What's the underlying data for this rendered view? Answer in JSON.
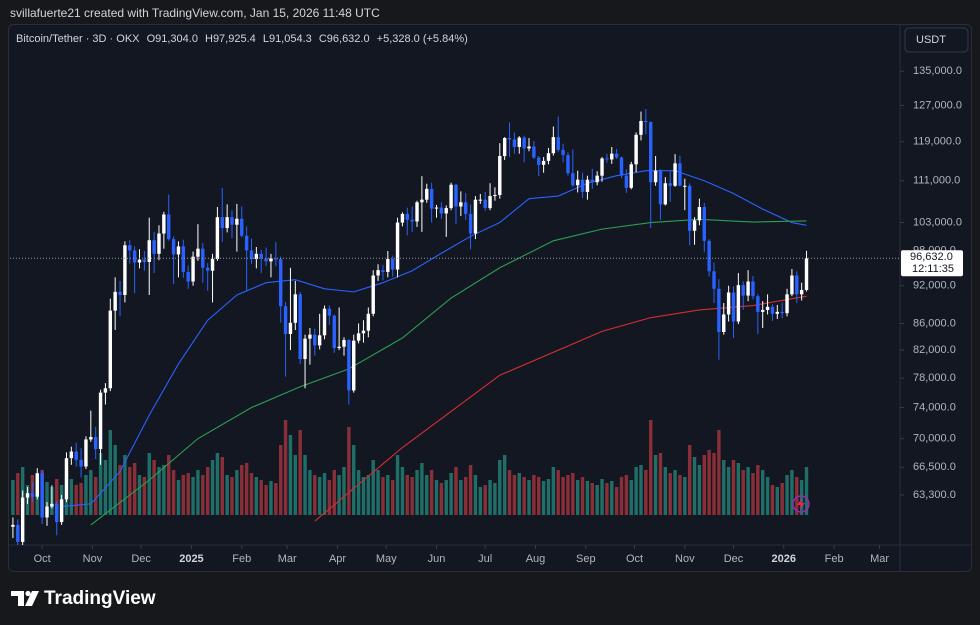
{
  "header": "svillafuerte21 created with TradingView.com, Jan 15, 2026 11:48 UTC",
  "brand": "TradingView",
  "chart_data": {
    "type": "candlestick",
    "symbol": "Bitcoin/Tether · 3D · OKX",
    "legend_values": [
      "O91,304.0",
      "H97,925.4",
      "L91,054.3",
      "C96,632.0",
      "+5,328.0 (+5.84%)"
    ],
    "currency": "USDT",
    "last_price_label": "96,632.0",
    "countdown": "12:11:35",
    "up_color": "#ffffff",
    "down_color": "#2962ff",
    "volume_up_color": "#1f6f68",
    "volume_down_color": "#8a2f37",
    "log_scale": true,
    "grid": false,
    "xlim": [
      -0.6,
      182.2
    ],
    "ylim": [
      58400,
      146100
    ],
    "xticks": [
      {
        "value": 6,
        "label": "Oct"
      },
      {
        "value": 16.33,
        "label": "Nov"
      },
      {
        "value": 26.33,
        "label": "Dec"
      },
      {
        "value": 36.67,
        "label": "2025"
      },
      {
        "value": 47,
        "label": "Feb"
      },
      {
        "value": 56.33,
        "label": "Mar"
      },
      {
        "value": 66.67,
        "label": "Apr"
      },
      {
        "value": 76.67,
        "label": "May"
      },
      {
        "value": 87,
        "label": "Jun"
      },
      {
        "value": 97,
        "label": "Jul"
      },
      {
        "value": 107.33,
        "label": "Aug"
      },
      {
        "value": 117.67,
        "label": "Sep"
      },
      {
        "value": 127.67,
        "label": "Oct"
      },
      {
        "value": 138,
        "label": "Nov"
      },
      {
        "value": 148,
        "label": "Dec"
      },
      {
        "value": 158.33,
        "label": "2026"
      },
      {
        "value": 168.67,
        "label": "Feb"
      },
      {
        "value": 178,
        "label": "Mar"
      }
    ],
    "yticks": [
      {
        "value": 63300,
        "label": "63,300.0"
      },
      {
        "value": 66500,
        "label": "66,500.0"
      },
      {
        "value": 70000,
        "label": "70,000.0"
      },
      {
        "value": 74000,
        "label": "74,000.0"
      },
      {
        "value": 78000,
        "label": "78,000.0"
      },
      {
        "value": 82000,
        "label": "82,000.0"
      },
      {
        "value": 86000,
        "label": "86,000.0"
      },
      {
        "value": 92000,
        "label": "92,000.0"
      },
      {
        "value": 98000,
        "label": "98,000.0"
      },
      {
        "value": 103000,
        "label": "103,000.0"
      },
      {
        "value": 111000,
        "label": "111,000.0"
      },
      {
        "value": 119000,
        "label": "119,000.0"
      },
      {
        "value": 127000,
        "label": "127,000.0"
      },
      {
        "value": 135000,
        "label": "135,000.0"
      }
    ],
    "candles": [
      [
        59800,
        60800,
        58600,
        60000
      ],
      [
        60000,
        60600,
        57500,
        58200
      ],
      [
        58200,
        63800,
        57800,
        63000
      ],
      [
        63000,
        64200,
        62300,
        63500
      ],
      [
        63500,
        64800,
        62500,
        63100
      ],
      [
        63100,
        66400,
        62800,
        65800
      ],
      [
        65800,
        66200,
        60100,
        60800
      ],
      [
        60800,
        62500,
        59900,
        62000
      ],
      [
        62000,
        64400,
        61800,
        62300
      ],
      [
        62300,
        62600,
        58900,
        60300
      ],
      [
        60300,
        63300,
        60000,
        62800
      ],
      [
        62800,
        68300,
        62500,
        67600
      ],
      [
        67600,
        69000,
        66800,
        68400
      ],
      [
        68400,
        69500,
        66600,
        67400
      ],
      [
        67400,
        68800,
        65300,
        66600
      ],
      [
        66600,
        70300,
        66300,
        69900
      ],
      [
        69900,
        73600,
        69600,
        70200
      ],
      [
        70200,
        71500,
        67500,
        68700
      ],
      [
        68700,
        76400,
        66800,
        76000
      ],
      [
        76000,
        77300,
        74400,
        76600
      ],
      [
        76600,
        89900,
        76200,
        88000
      ],
      [
        88000,
        93400,
        85000,
        91000
      ],
      [
        91000,
        92800,
        87100,
        90500
      ],
      [
        90500,
        99600,
        89300,
        98900
      ],
      [
        98900,
        99800,
        95700,
        98000
      ],
      [
        98000,
        98700,
        90800,
        95900
      ],
      [
        95900,
        98200,
        94900,
        96400
      ],
      [
        96400,
        97900,
        94500,
        96000
      ],
      [
        96000,
        103900,
        90500,
        99800
      ],
      [
        99800,
        101300,
        94100,
        97400
      ],
      [
        97400,
        102500,
        96300,
        101000
      ],
      [
        101000,
        105000,
        98300,
        104500
      ],
      [
        104500,
        108300,
        99700,
        100000
      ],
      [
        100000,
        100500,
        92300,
        97300
      ],
      [
        97300,
        99600,
        93400,
        98700
      ],
      [
        98700,
        99900,
        93300,
        94300
      ],
      [
        94300,
        95400,
        91500,
        92700
      ],
      [
        92700,
        97800,
        92000,
        96900
      ],
      [
        96900,
        102700,
        96200,
        98300
      ],
      [
        98300,
        99300,
        92500,
        95000
      ],
      [
        95000,
        95800,
        91200,
        94500
      ],
      [
        94500,
        97400,
        89300,
        96500
      ],
      [
        96500,
        105900,
        96200,
        104000
      ],
      [
        104000,
        109600,
        99500,
        102000
      ],
      [
        102000,
        106400,
        101200,
        104000
      ],
      [
        104000,
        105300,
        100200,
        102600
      ],
      [
        102600,
        106500,
        97800,
        103700
      ],
      [
        103700,
        106000,
        100300,
        100600
      ],
      [
        100600,
        102300,
        91200,
        98000
      ],
      [
        98000,
        100100,
        95700,
        96500
      ],
      [
        96500,
        98600,
        94900,
        97400
      ],
      [
        97400,
        98100,
        94100,
        96600
      ],
      [
        96600,
        98500,
        95300,
        96100
      ],
      [
        96100,
        97400,
        93400,
        96600
      ],
      [
        96600,
        99500,
        95300,
        96500
      ],
      [
        96500,
        96900,
        86100,
        88700
      ],
      [
        88700,
        89400,
        78200,
        84400
      ],
      [
        84400,
        95000,
        82000,
        86100
      ],
      [
        86100,
        92800,
        85000,
        90600
      ],
      [
        90600,
        91000,
        80000,
        80700
      ],
      [
        80700,
        84300,
        76600,
        83700
      ],
      [
        83700,
        85300,
        79900,
        84300
      ],
      [
        84300,
        85200,
        81200,
        82700
      ],
      [
        82700,
        87500,
        82100,
        84200
      ],
      [
        84200,
        88800,
        83600,
        88300
      ],
      [
        88300,
        88800,
        85800,
        87200
      ],
      [
        87200,
        87400,
        81600,
        82300
      ],
      [
        82300,
        88500,
        82000,
        82500
      ],
      [
        82500,
        83900,
        81200,
        83500
      ],
      [
        83500,
        83600,
        74400,
        76300
      ],
      [
        76300,
        84300,
        76000,
        83400
      ],
      [
        83400,
        86000,
        83000,
        84500
      ],
      [
        84500,
        86500,
        83100,
        84900
      ],
      [
        84900,
        88500,
        83900,
        87500
      ],
      [
        87500,
        94600,
        87100,
        93700
      ],
      [
        93700,
        95600,
        92800,
        94600
      ],
      [
        94600,
        95500,
        92900,
        94300
      ],
      [
        94300,
        97900,
        93400,
        96500
      ],
      [
        96500,
        97100,
        93500,
        94700
      ],
      [
        94700,
        103900,
        93400,
        103000
      ],
      [
        103000,
        104900,
        102300,
        104600
      ],
      [
        104600,
        105800,
        100700,
        103500
      ],
      [
        103500,
        106000,
        101300,
        103200
      ],
      [
        103200,
        107100,
        102200,
        106800
      ],
      [
        106800,
        111900,
        101300,
        107300
      ],
      [
        107300,
        110400,
        106700,
        109400
      ],
      [
        109400,
        110600,
        103000,
        105600
      ],
      [
        105600,
        106300,
        103900,
        105800
      ],
      [
        105800,
        106800,
        103700,
        104700
      ],
      [
        104700,
        106200,
        100400,
        105700
      ],
      [
        105700,
        110600,
        105300,
        110200
      ],
      [
        110200,
        110400,
        102700,
        106000
      ],
      [
        106000,
        108900,
        104200,
        106800
      ],
      [
        106800,
        108600,
        103500,
        104600
      ],
      [
        104600,
        106400,
        98200,
        101000
      ],
      [
        101000,
        108000,
        100000,
        107300
      ],
      [
        107300,
        108400,
        106500,
        107300
      ],
      [
        107300,
        108800,
        105200,
        105700
      ],
      [
        105700,
        110500,
        105300,
        108000
      ],
      [
        108000,
        109700,
        107100,
        108200
      ],
      [
        108200,
        118700,
        107500,
        116000
      ],
      [
        116000,
        120000,
        115200,
        119800
      ],
      [
        119800,
        123200,
        115800,
        119500
      ],
      [
        119500,
        121000,
        116500,
        117900
      ],
      [
        117900,
        120200,
        116500,
        119900
      ],
      [
        119900,
        120300,
        114700,
        117600
      ],
      [
        117600,
        119800,
        117000,
        118000
      ],
      [
        118000,
        119200,
        115400,
        115700
      ],
      [
        115700,
        116000,
        111900,
        114200
      ],
      [
        114200,
        115800,
        112600,
        115000
      ],
      [
        115000,
        117700,
        114300,
        116600
      ],
      [
        116600,
        122300,
        116100,
        120000
      ],
      [
        120000,
        124500,
        116800,
        117300
      ],
      [
        117300,
        118600,
        114700,
        116200
      ],
      [
        116200,
        116800,
        112000,
        112500
      ],
      [
        112500,
        117400,
        109800,
        110100
      ],
      [
        110100,
        113000,
        108700,
        111200
      ],
      [
        111200,
        112600,
        107600,
        108800
      ],
      [
        108800,
        112000,
        107300,
        111200
      ],
      [
        111200,
        113400,
        109400,
        110700
      ],
      [
        110700,
        112900,
        110100,
        112000
      ],
      [
        112000,
        115800,
        110800,
        115500
      ],
      [
        115500,
        116500,
        114600,
        115300
      ],
      [
        115300,
        117900,
        114400,
        116500
      ],
      [
        116500,
        117500,
        115400,
        115700
      ],
      [
        115700,
        115900,
        111500,
        112000
      ],
      [
        112000,
        113300,
        108600,
        109600
      ],
      [
        109600,
        114800,
        109300,
        114300
      ],
      [
        114300,
        121000,
        112700,
        120500
      ],
      [
        120500,
        125600,
        119300,
        123500
      ],
      [
        123500,
        126200,
        120600,
        123300
      ],
      [
        123300,
        123400,
        102000,
        110700
      ],
      [
        110700,
        116000,
        110000,
        113000
      ],
      [
        113000,
        113300,
        103500,
        106400
      ],
      [
        106400,
        111700,
        106200,
        110500
      ],
      [
        110500,
        113000,
        106900,
        110000
      ],
      [
        110000,
        116400,
        109800,
        114500
      ],
      [
        114500,
        116100,
        109900,
        110000
      ],
      [
        110000,
        111400,
        105300,
        110000
      ],
      [
        110000,
        110500,
        98900,
        101500
      ],
      [
        101500,
        104000,
        99000,
        103400
      ],
      [
        103400,
        107500,
        102500,
        105900
      ],
      [
        105900,
        106700,
        97700,
        99700
      ],
      [
        99700,
        100000,
        93500,
        94400
      ],
      [
        94400,
        95900,
        89200,
        91500
      ],
      [
        91500,
        93100,
        80600,
        84700
      ],
      [
        84700,
        89200,
        84300,
        87400
      ],
      [
        87400,
        92000,
        86300,
        90900
      ],
      [
        90900,
        91900,
        83800,
        86300
      ],
      [
        86300,
        94100,
        85900,
        92100
      ],
      [
        92100,
        92700,
        88100,
        90400
      ],
      [
        90400,
        94600,
        89500,
        92700
      ],
      [
        92700,
        93600,
        89800,
        90300
      ],
      [
        90300,
        90600,
        84400,
        87800
      ],
      [
        87800,
        89500,
        85300,
        88100
      ],
      [
        88100,
        90600,
        87400,
        88600
      ],
      [
        88600,
        89000,
        86400,
        87500
      ],
      [
        87500,
        88900,
        86700,
        87800
      ],
      [
        87800,
        89300,
        86800,
        87600
      ],
      [
        87600,
        91500,
        87100,
        90600
      ],
      [
        90600,
        94800,
        90300,
        93700
      ],
      [
        93700,
        94400,
        89200,
        90600
      ],
      [
        90600,
        92500,
        89600,
        91304
      ],
      [
        91304,
        97925.4,
        91054.3,
        96632
      ]
    ],
    "volume": [
      35,
      42,
      48,
      30,
      40,
      38,
      45,
      33,
      28,
      36,
      30,
      44,
      36,
      30,
      32,
      40,
      45,
      38,
      62,
      55,
      85,
      70,
      50,
      60,
      48,
      52,
      40,
      38,
      62,
      55,
      48,
      50,
      60,
      45,
      35,
      40,
      42,
      38,
      45,
      40,
      48,
      55,
      62,
      58,
      40,
      38,
      45,
      50,
      52,
      42,
      38,
      35,
      30,
      34,
      32,
      70,
      95,
      80,
      60,
      85,
      60,
      45,
      40,
      38,
      42,
      35,
      45,
      40,
      48,
      88,
      70,
      45,
      38,
      40,
      55,
      45,
      38,
      40,
      35,
      60,
      48,
      40,
      38,
      45,
      52,
      40,
      45,
      35,
      32,
      35,
      42,
      48,
      35,
      38,
      50,
      40,
      28,
      30,
      35,
      32,
      55,
      60,
      45,
      40,
      42,
      38,
      35,
      40,
      38,
      34,
      36,
      48,
      45,
      38,
      40,
      42,
      35,
      38,
      34,
      32,
      30,
      36,
      32,
      34,
      28,
      38,
      40,
      35,
      48,
      50,
      45,
      95,
      60,
      62,
      48,
      42,
      45,
      40,
      38,
      70,
      58,
      50,
      60,
      65,
      62,
      85,
      55,
      48,
      55,
      52,
      45,
      48,
      42,
      50,
      45,
      38,
      30,
      28,
      32,
      40,
      45,
      38,
      35,
      48
    ],
    "moving_averages": [
      {
        "color": "#2962ff",
        "x": [
          10,
          16,
          22,
          28,
          34,
          40,
          46,
          52,
          58,
          64,
          70,
          76,
          82,
          88,
          94,
          100,
          106,
          112,
          118,
          124,
          130,
          136,
          142,
          148,
          154,
          160,
          163
        ],
        "values": [
          62000,
          62300,
          66000,
          73000,
          80000,
          86500,
          90500,
          92500,
          93000,
          91500,
          91000,
          92500,
          94500,
          97500,
          100500,
          103000,
          107500,
          108000,
          110500,
          112000,
          113000,
          113000,
          111000,
          108500,
          105500,
          103000,
          102500
        ]
      },
      {
        "color": "#2e9e4f",
        "x": [
          16,
          28,
          38,
          49,
          59,
          69,
          80,
          90,
          100,
          111,
          121,
          131,
          141,
          152,
          163
        ],
        "values": [
          60000,
          65000,
          70000,
          74000,
          76800,
          79300,
          83800,
          90000,
          95000,
          99700,
          101800,
          103000,
          103600,
          103100,
          103300
        ]
      },
      {
        "color": "#d32f2f",
        "x": [
          62,
          80,
          100,
          121,
          131,
          141,
          152,
          163
        ],
        "values": [
          60400,
          68900,
          78400,
          84800,
          86900,
          88100,
          88800,
          90300
        ]
      }
    ]
  }
}
